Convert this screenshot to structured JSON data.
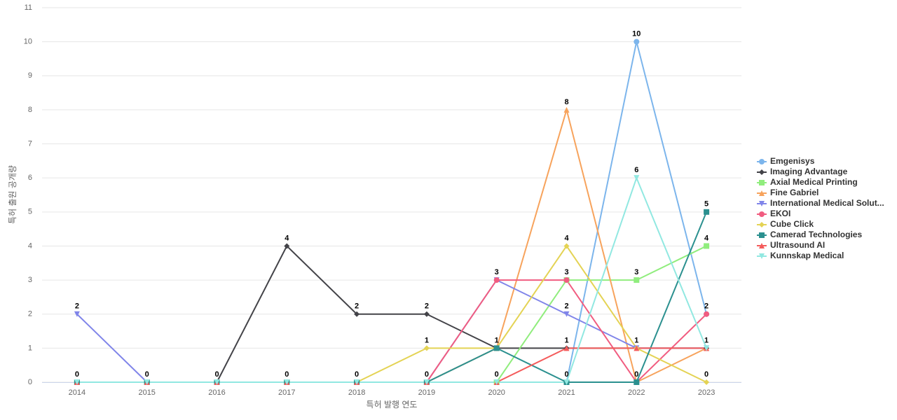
{
  "chart_data": {
    "type": "line",
    "x_label": "특허 발행 연도",
    "y_label": "특허 출원 공개량",
    "categories": [
      "2014",
      "2015",
      "2016",
      "2017",
      "2018",
      "2019",
      "2020",
      "2021",
      "2022",
      "2023"
    ],
    "ylim": [
      0,
      11
    ],
    "yticks": [
      0,
      1,
      2,
      3,
      4,
      5,
      6,
      7,
      8,
      9,
      10,
      11
    ],
    "grid": true,
    "legend": "right",
    "series": [
      {
        "name": "Emgenisys",
        "color": "#7cb5ec",
        "marker": "circle",
        "values": [
          0,
          0,
          0,
          0,
          0,
          0,
          0,
          0,
          10,
          2
        ]
      },
      {
        "name": "Imaging Advantage",
        "color": "#434348",
        "marker": "diamond",
        "values": [
          0,
          0,
          0,
          4,
          2,
          2,
          1,
          1,
          1,
          1
        ]
      },
      {
        "name": "Axial Medical Printing",
        "color": "#90ed7d",
        "marker": "square",
        "values": [
          0,
          0,
          0,
          0,
          0,
          0,
          0,
          3,
          3,
          4
        ]
      },
      {
        "name": "Fine Gabriel",
        "color": "#f7a35c",
        "marker": "triangle",
        "values": [
          0,
          0,
          0,
          0,
          0,
          0,
          1,
          8,
          0,
          1
        ]
      },
      {
        "name": "International Medical Solut...",
        "color": "#8085e9",
        "marker": "triangle-down",
        "values": [
          2,
          0,
          0,
          0,
          0,
          0,
          3,
          2,
          1,
          1
        ]
      },
      {
        "name": "EKOI",
        "color": "#f15c80",
        "marker": "circle",
        "values": [
          0,
          0,
          0,
          0,
          0,
          0,
          3,
          3,
          0,
          2
        ]
      },
      {
        "name": "Cube Click",
        "color": "#e4d354",
        "marker": "diamond",
        "values": [
          0,
          0,
          0,
          0,
          0,
          1,
          1,
          4,
          1,
          0
        ]
      },
      {
        "name": "Camerad Technologies",
        "color": "#2b908f",
        "marker": "square",
        "values": [
          0,
          0,
          0,
          0,
          0,
          0,
          1,
          0,
          0,
          5
        ]
      },
      {
        "name": "Ultrasound AI",
        "color": "#f45b5b",
        "marker": "triangle",
        "values": [
          0,
          0,
          0,
          0,
          0,
          0,
          0,
          1,
          1,
          1
        ]
      },
      {
        "name": "Kunnskap Medical",
        "color": "#91e8e1",
        "marker": "triangle-down",
        "values": [
          0,
          0,
          0,
          0,
          0,
          0,
          0,
          0,
          6,
          1
        ]
      }
    ]
  }
}
